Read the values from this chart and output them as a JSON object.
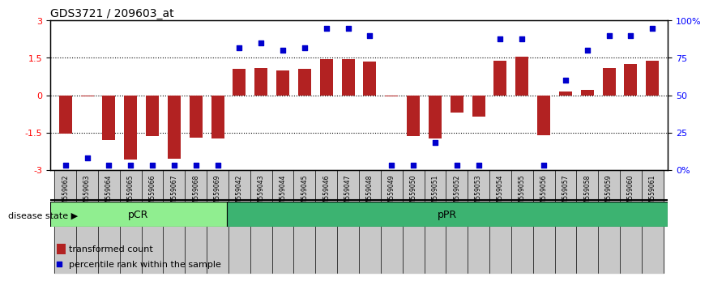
{
  "title": "GDS3721 / 209603_at",
  "samples": [
    "GSM559062",
    "GSM559063",
    "GSM559064",
    "GSM559065",
    "GSM559066",
    "GSM559067",
    "GSM559068",
    "GSM559069",
    "GSM559042",
    "GSM559043",
    "GSM559044",
    "GSM559045",
    "GSM559046",
    "GSM559047",
    "GSM559048",
    "GSM559049",
    "GSM559050",
    "GSM559051",
    "GSM559052",
    "GSM559053",
    "GSM559054",
    "GSM559055",
    "GSM559056",
    "GSM559057",
    "GSM559058",
    "GSM559059",
    "GSM559060",
    "GSM559061"
  ],
  "bar_values": [
    -1.55,
    -0.05,
    -1.8,
    -2.6,
    -1.65,
    -2.55,
    -1.7,
    -1.75,
    1.05,
    1.1,
    1.0,
    1.05,
    1.45,
    1.45,
    1.35,
    -0.05,
    -1.65,
    -1.75,
    -0.7,
    -0.85,
    1.4,
    1.55,
    -1.6,
    0.15,
    0.2,
    1.1,
    1.25,
    1.4
  ],
  "percentile_values": [
    3,
    8,
    3,
    3,
    3,
    3,
    3,
    3,
    82,
    85,
    80,
    82,
    95,
    95,
    90,
    3,
    3,
    18,
    3,
    3,
    88,
    88,
    3,
    60,
    80,
    90,
    90,
    95
  ],
  "pCR_count": 8,
  "pPR_count": 20,
  "bar_color": "#B22222",
  "scatter_color": "#0000CD",
  "background_main": "#FFFFFF",
  "background_xticklabels": "#C8C8C8",
  "pCR_color": "#90EE90",
  "pPR_color": "#3CB371",
  "ylim_left": [
    -3,
    3
  ],
  "ylim_right": [
    0,
    100
  ],
  "yticks_left": [
    -3,
    -1.5,
    0,
    1.5,
    3
  ],
  "ytick_labels_left": [
    "-3",
    "-1.5",
    "0",
    "1.5",
    "3"
  ],
  "ytick_labels_right": [
    "0%",
    "25",
    "50",
    "75",
    "100%"
  ],
  "dotted_lines": [
    -1.5,
    0,
    1.5
  ],
  "legend_bar_label": "transformed count",
  "legend_scatter_label": "percentile rank within the sample",
  "disease_state_label": "disease state",
  "pCR_label": "pCR",
  "pPR_label": "pPR"
}
